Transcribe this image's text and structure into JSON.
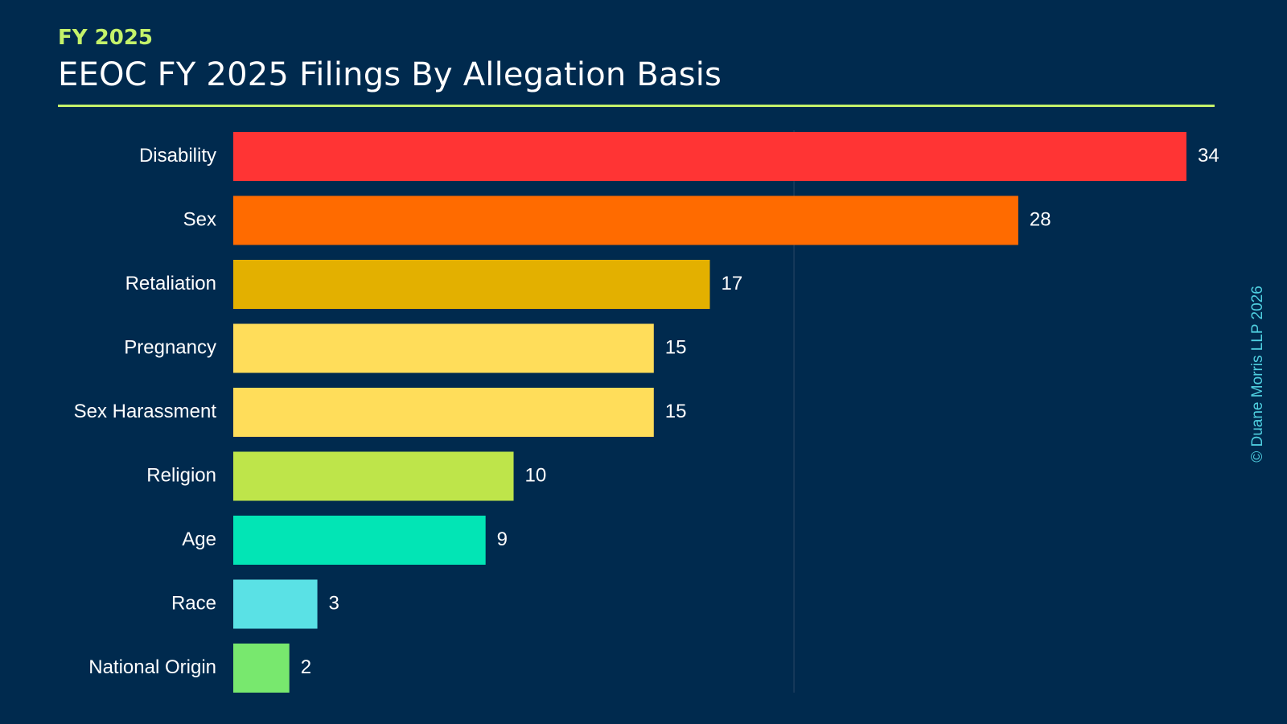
{
  "header": {
    "kicker": "FY 2025",
    "title": "EEOC FY 2025 Filings By Allegation Basis"
  },
  "footer": {
    "copyright": "© Duane Morris LLP 2026"
  },
  "colors": {
    "background": "#002a4e",
    "accent": "#c4f26a",
    "copyright": "#4fcfe0",
    "gridline": "#2a4866"
  },
  "chart_data": {
    "type": "bar",
    "orientation": "horizontal",
    "title": "EEOC FY 2025 Filings By Allegation Basis",
    "xlabel": "",
    "ylabel": "",
    "xlim": [
      0,
      34
    ],
    "grid": true,
    "legend": "none",
    "categories": [
      "Disability",
      "Sex",
      "Retaliation",
      "Pregnancy",
      "Sex Harassment",
      "Religion",
      "Age",
      "Race",
      "National Origin"
    ],
    "values": [
      34,
      28,
      17,
      15,
      15,
      10,
      9,
      3,
      2
    ],
    "colors": [
      "#ff3434",
      "#ff6b00",
      "#e3b000",
      "#ffdd5a",
      "#ffdd5a",
      "#bee54a",
      "#02e5b5",
      "#5ae1e5",
      "#78e86e"
    ],
    "data_labels": [
      "34",
      "28",
      "17",
      "15",
      "15",
      "10",
      "9",
      "3",
      "2"
    ]
  }
}
